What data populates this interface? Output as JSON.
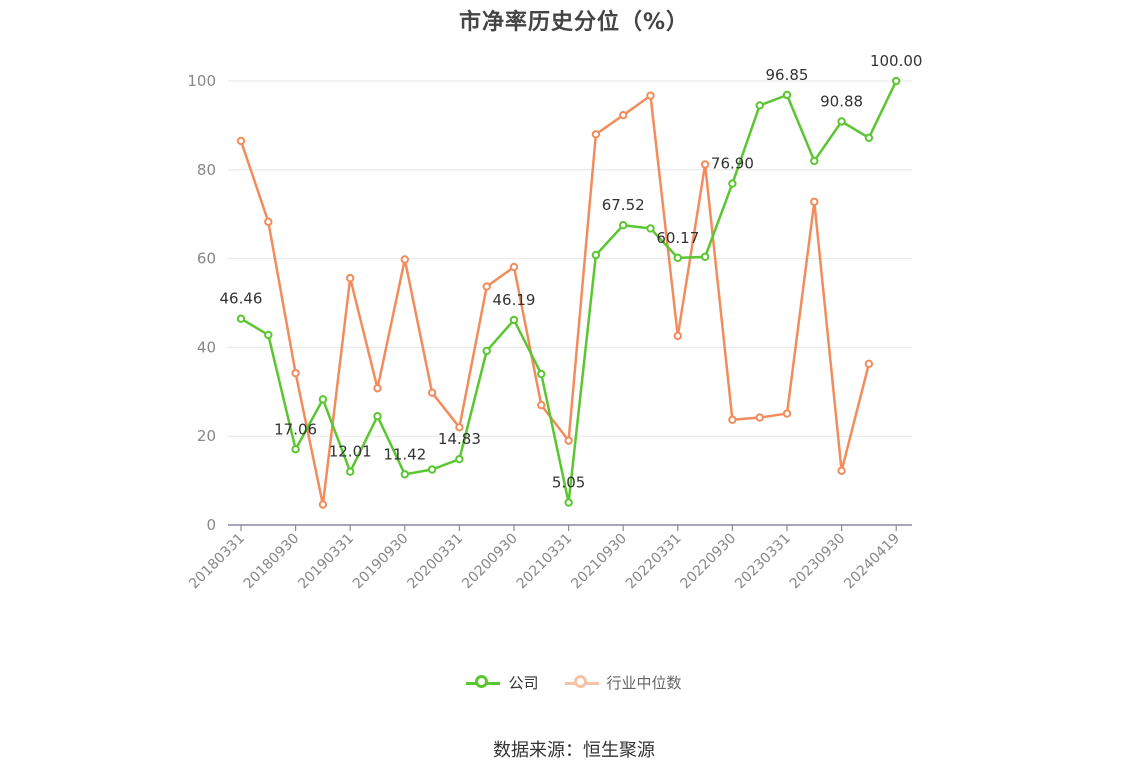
{
  "title": "市净率历史分位（%）",
  "source": "数据来源：恒生聚源",
  "legend": [
    {
      "label": "公司",
      "color": "#5ac630"
    },
    {
      "label": "行业中位数",
      "color": "#f28c5c"
    }
  ],
  "chart_data": {
    "type": "line",
    "title": "市净率历史分位（%）",
    "ylim": [
      0,
      100
    ],
    "yticks": [
      0,
      20,
      40,
      60,
      80,
      100
    ],
    "grid": true,
    "legend_position": "bottom",
    "x_tick_labels": [
      "20180331",
      "20180930",
      "20190331",
      "20190930",
      "20200331",
      "20200930",
      "20210331",
      "20210930",
      "20220331",
      "20220930",
      "20230331",
      "20230930",
      "20240419"
    ],
    "x": [
      "20180331",
      "20180630",
      "20180930",
      "20181231",
      "20190331",
      "20190630",
      "20190930",
      "20191231",
      "20200331",
      "20200630",
      "20200930",
      "20201231",
      "20210331",
      "20210630",
      "20210930",
      "20211231",
      "20220331",
      "20220630",
      "20220930",
      "20221231",
      "20230331",
      "20230630",
      "20230930",
      "20231231",
      "20240419"
    ],
    "series": [
      {
        "name": "公司",
        "color": "#5ac630",
        "values": [
          46.46,
          42.8,
          17.06,
          28.3,
          12.01,
          24.5,
          11.42,
          12.5,
          14.83,
          39.2,
          46.19,
          34.0,
          5.05,
          60.8,
          67.52,
          66.8,
          60.17,
          60.4,
          76.9,
          94.5,
          96.85,
          82.0,
          90.88,
          87.2,
          100.0
        ],
        "labels": {
          "0": "46.46",
          "2": "17.06",
          "4": "12.01",
          "6": "11.42",
          "8": "14.83",
          "10": "46.19",
          "12": "5.05",
          "14": "67.52",
          "16": "60.17",
          "18": "76.90",
          "20": "96.85",
          "22": "90.88",
          "24": "100.00"
        }
      },
      {
        "name": "行业中位数",
        "color": "#f28c5c",
        "values": [
          86.5,
          68.3,
          34.2,
          4.6,
          55.6,
          30.8,
          59.8,
          29.8,
          22.0,
          53.7,
          58.1,
          27.0,
          19.0,
          88.0,
          92.3,
          96.7,
          42.6,
          81.2,
          23.7,
          24.2,
          25.1,
          72.8,
          12.2,
          36.3,
          null
        ]
      }
    ]
  }
}
